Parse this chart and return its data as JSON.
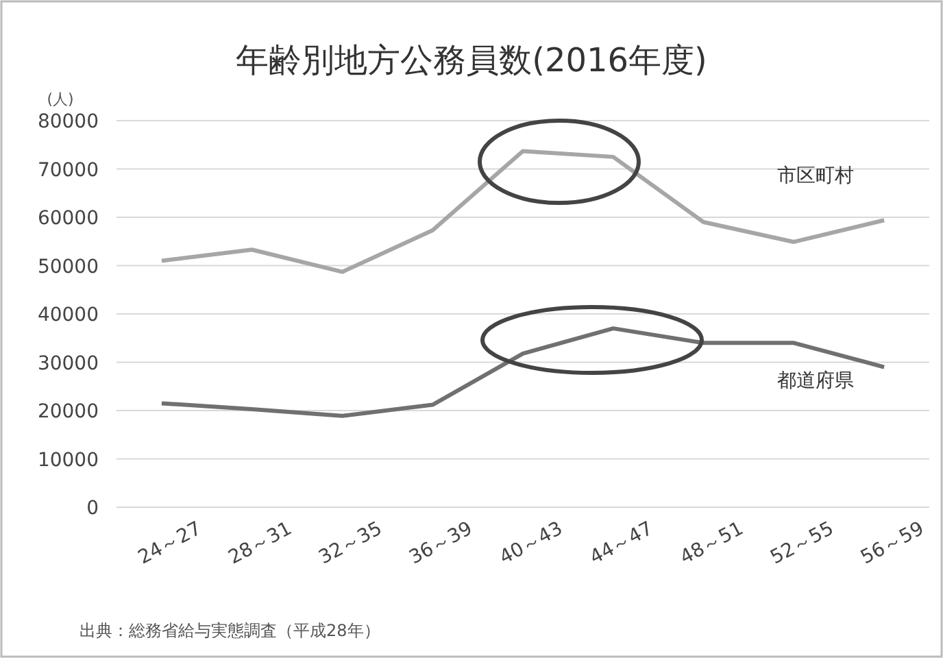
{
  "chart_data": {
    "type": "line",
    "title": "年齢別地方公務員数(2016年度)",
    "ylabel": "(人)",
    "categories": [
      "24～27",
      "28～31",
      "32～35",
      "36～39",
      "40～43",
      "44～47",
      "48～51",
      "52～55",
      "56～59"
    ],
    "series": [
      {
        "name": "市区町村",
        "color": "#a6a6a6",
        "values": [
          51000,
          53300,
          48700,
          57300,
          73700,
          72500,
          59000,
          54900,
          59400
        ]
      },
      {
        "name": "都道府県",
        "color": "#707070",
        "values": [
          21500,
          20300,
          18900,
          21200,
          31800,
          37000,
          34000,
          34000,
          29000
        ]
      }
    ],
    "ylim": [
      0,
      80000
    ],
    "yticks": [
      0,
      10000,
      20000,
      30000,
      40000,
      50000,
      60000,
      70000,
      80000
    ],
    "grid": "y",
    "legend": false,
    "marker": "none",
    "line_style": "solid",
    "annotations": [
      "出典：総務省給与実態調査（平成28年）"
    ]
  }
}
